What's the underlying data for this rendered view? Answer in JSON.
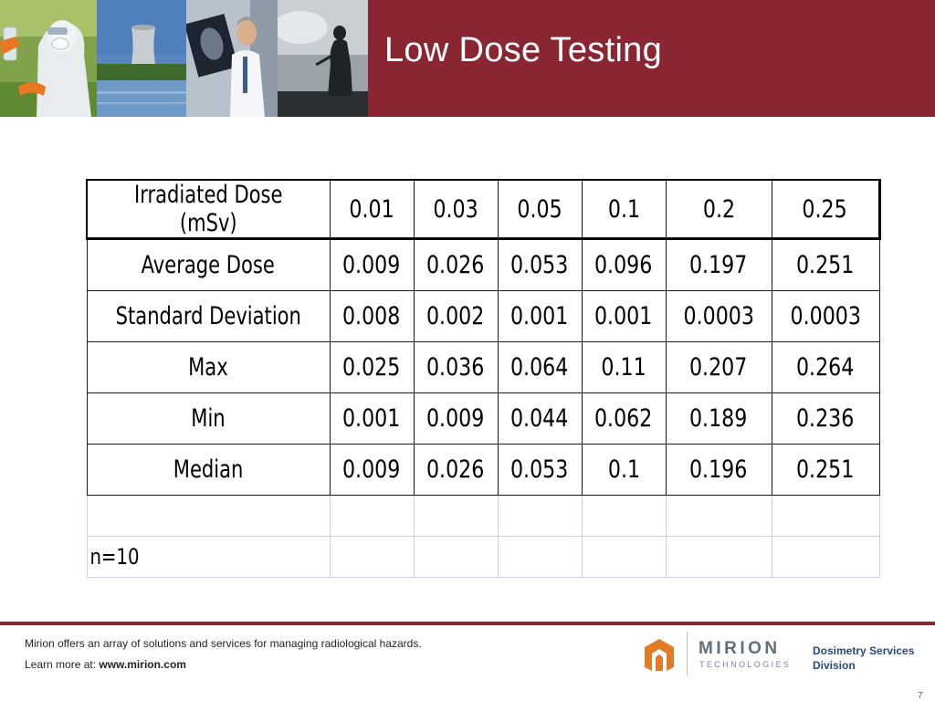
{
  "slide": {
    "title": "Low Dose Testing",
    "page_number": "7"
  },
  "table": {
    "header_label": "Irradiated Dose (mSv)",
    "columns": [
      "0.01",
      "0.03",
      "0.05",
      "0.1",
      "0.2",
      "0.25"
    ],
    "rows": [
      {
        "label": "Average Dose",
        "values": [
          "0.009",
          "0.026",
          "0.053",
          "0.096",
          "0.197",
          "0.251"
        ]
      },
      {
        "label": "Standard Deviation",
        "values": [
          "0.008",
          "0.002",
          "0.001",
          "0.001",
          "0.0003",
          "0.0003"
        ]
      },
      {
        "label": "Max",
        "values": [
          "0.025",
          "0.036",
          "0.064",
          "0.11",
          "0.207",
          "0.264"
        ]
      },
      {
        "label": "Min",
        "values": [
          "0.001",
          "0.009",
          "0.044",
          "0.062",
          "0.189",
          "0.236"
        ]
      },
      {
        "label": "Median",
        "values": [
          "0.009",
          "0.026",
          "0.053",
          "0.1",
          "0.196",
          "0.251"
        ]
      }
    ],
    "note": "n=10"
  },
  "footer": {
    "tagline": "Mirion offers an array of solutions and services for managing radiological hazards.",
    "learn_more_prefix": "Learn more at: ",
    "website": "www.mirion.com",
    "logo_word": "MIRION",
    "logo_sub": "TECHNOLOGIES",
    "division_line1": "Dosimetry Services",
    "division_line2": "Division"
  },
  "colors": {
    "brand_red": "#8a2631",
    "logo_orange": "#e07b26",
    "logo_gray": "#5f6f7d",
    "division_blue": "#2a4a7a"
  },
  "photos": [
    "hazmat-worker-photo",
    "cooling-tower-photo",
    "doctor-xray-photo",
    "soldier-silhouette-photo"
  ]
}
